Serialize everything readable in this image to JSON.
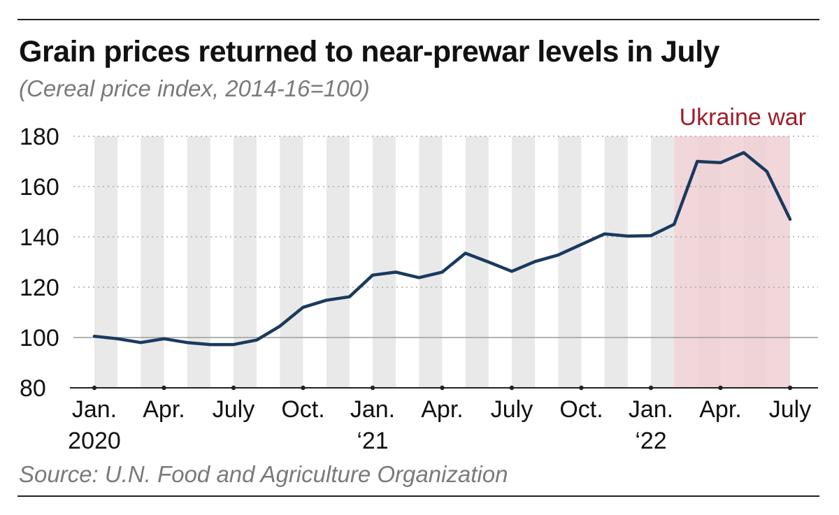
{
  "title": "Grain prices returned to near-prewar levels in July",
  "subtitle": "(Cereal price index, 2014-16=100)",
  "source": "Source: U.N. Food and Agriculture Organization",
  "colors": {
    "line": "#1a3a5e",
    "war_band": "#efcfd3",
    "war_label": "#a01c2a",
    "stripe": "#e9e9e9"
  },
  "chart_data": {
    "type": "line",
    "title": "Grain prices returned to near-prewar levels in July",
    "subtitle": "(Cereal price index, 2014-16=100)",
    "xlabel": "",
    "ylabel": "Cereal price index, 2014-16=100",
    "ylim": [
      80,
      180
    ],
    "yticks": [
      80,
      100,
      120,
      140,
      160,
      180
    ],
    "grid": true,
    "x": [
      "2020-01",
      "2020-02",
      "2020-03",
      "2020-04",
      "2020-05",
      "2020-06",
      "2020-07",
      "2020-08",
      "2020-09",
      "2020-10",
      "2020-11",
      "2020-12",
      "2021-01",
      "2021-02",
      "2021-03",
      "2021-04",
      "2021-05",
      "2021-06",
      "2021-07",
      "2021-08",
      "2021-09",
      "2021-10",
      "2021-11",
      "2021-12",
      "2022-01",
      "2022-02",
      "2022-03",
      "2022-04",
      "2022-05",
      "2022-06",
      "2022-07"
    ],
    "series": [
      {
        "name": "Cereal price index",
        "values": [
          100.5,
          99.5,
          98.0,
          99.5,
          98.0,
          97.2,
          97.2,
          99.0,
          104.5,
          112.0,
          114.8,
          116.2,
          124.8,
          126.0,
          123.8,
          126.0,
          133.5,
          130.0,
          126.3,
          130.2,
          132.8,
          137.0,
          141.2,
          140.3,
          140.5,
          145.0,
          170.0,
          169.5,
          173.5,
          166.0,
          147.0
        ]
      }
    ],
    "tick_labels": [
      {
        "index": 0,
        "line1": "Jan.",
        "line2": "2020"
      },
      {
        "index": 3,
        "line1": "Apr.",
        "line2": ""
      },
      {
        "index": 6,
        "line1": "July",
        "line2": ""
      },
      {
        "index": 9,
        "line1": "Oct.",
        "line2": ""
      },
      {
        "index": 12,
        "line1": "Jan.",
        "line2": "‘21"
      },
      {
        "index": 15,
        "line1": "Apr.",
        "line2": ""
      },
      {
        "index": 18,
        "line1": "July",
        "line2": ""
      },
      {
        "index": 21,
        "line1": "Oct.",
        "line2": ""
      },
      {
        "index": 24,
        "line1": "Jan.",
        "line2": "‘22"
      },
      {
        "index": 27,
        "line1": "Apr.",
        "line2": ""
      },
      {
        "index": 30,
        "line1": "July",
        "line2": ""
      }
    ],
    "shaded_region": {
      "label": "Ukraine war",
      "start_index": 25,
      "end_index": 30
    }
  }
}
